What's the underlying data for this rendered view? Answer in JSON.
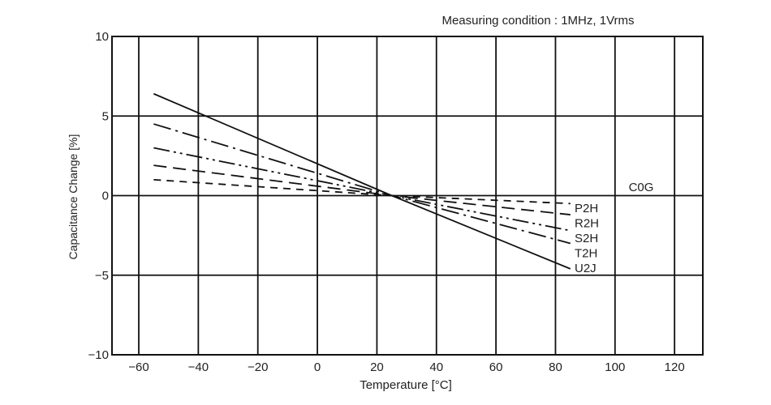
{
  "chart_data": {
    "type": "line",
    "title": "Measuring condition : 1MHz, 1Vrms",
    "annotation": "C0G",
    "xlabel": "Temperature [°C]",
    "ylabel": "Capacitance Change [%]",
    "xlim": [
      -69,
      129.5
    ],
    "ylim": [
      -10,
      10
    ],
    "xticks": [
      -60,
      -40,
      -20,
      0,
      20,
      40,
      60,
      80,
      100,
      120
    ],
    "yticks": [
      -10,
      -5,
      0,
      5,
      10
    ],
    "grid": true,
    "series": [
      {
        "name": "U2J",
        "style": "solid",
        "x": [
          -55,
          25,
          85
        ],
        "y": [
          6.4,
          0,
          -4.6
        ]
      },
      {
        "name": "T2H",
        "style": "dash-dot",
        "x": [
          -55,
          25,
          85
        ],
        "y": [
          4.5,
          0,
          -3.0
        ]
      },
      {
        "name": "S2H",
        "style": "dash-dot-dot",
        "x": [
          -55,
          25,
          85
        ],
        "y": [
          3.0,
          0,
          -2.2
        ]
      },
      {
        "name": "R2H",
        "style": "long-dash",
        "x": [
          -55,
          25,
          85
        ],
        "y": [
          1.9,
          0,
          -1.2
        ]
      },
      {
        "name": "P2H",
        "style": "short-dash",
        "x": [
          -55,
          25,
          85
        ],
        "y": [
          1.0,
          0,
          -0.5
        ]
      }
    ],
    "label_order": [
      "P2H",
      "R2H",
      "S2H",
      "T2H",
      "U2J"
    ],
    "colors": {
      "line": "#111111",
      "grid": "#111111"
    }
  }
}
